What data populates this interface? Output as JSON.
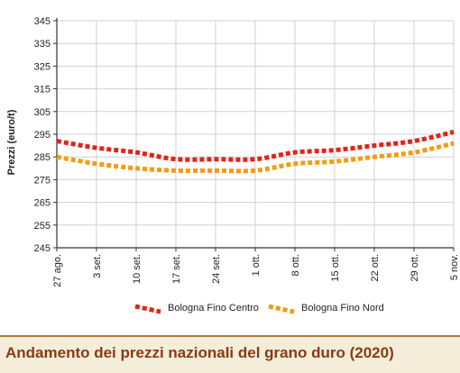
{
  "chart_data": {
    "type": "line",
    "title": "",
    "xlabel": "",
    "ylabel": "Prezzi (euro/t)",
    "ylim": [
      245,
      345
    ],
    "yticks": [
      245,
      255,
      265,
      275,
      285,
      295,
      305,
      315,
      325,
      335,
      345
    ],
    "categories": [
      "27 ago.",
      "3 set.",
      "10 set.",
      "17 set.",
      "24 set.",
      "1 ott.",
      "8 ott.",
      "15 ott.",
      "22 ott.",
      "29 ott.",
      "5 nov."
    ],
    "grid": true,
    "legend_position": "bottom",
    "series": [
      {
        "name": "Bologna Fino Centro",
        "color": "#e2231a",
        "values": [
          292,
          289,
          287,
          284,
          284,
          284,
          287,
          288,
          290,
          292,
          296
        ]
      },
      {
        "name": "Bologna Fino Nord",
        "color": "#f39c12",
        "values": [
          285,
          282,
          280,
          279,
          279,
          279,
          282,
          283,
          285,
          287,
          291
        ]
      }
    ]
  },
  "caption": {
    "text": "Andamento dei prezzi nazionali del grano duro (2020)"
  },
  "colors": {
    "grid": "#d0d0d0",
    "axis": "#333333",
    "caption_bg": "#f4edd9",
    "caption_text": "#8a3a12"
  }
}
